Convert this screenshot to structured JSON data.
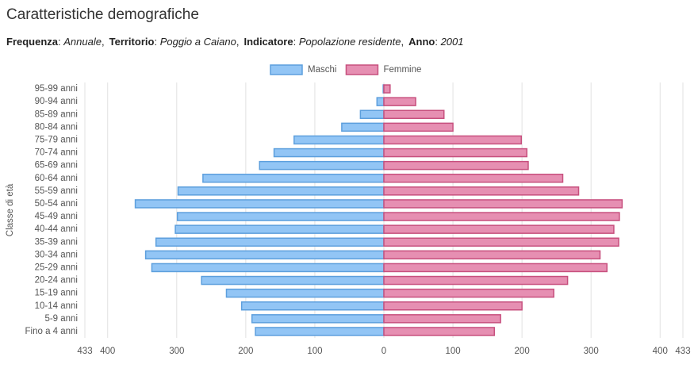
{
  "chart_data": {
    "type": "pyramid",
    "title": "Caratteristiche demografiche",
    "subtitle": [
      {
        "label": "Frequenza",
        "value": "Annuale"
      },
      {
        "label": "Territorio",
        "value": "Poggio a Caiano"
      },
      {
        "label": "Indicatore",
        "value": "Popolazione residente"
      },
      {
        "label": "Anno",
        "value": "2001"
      }
    ],
    "y_label": "Classe di età",
    "categories": [
      "95-99 anni",
      "90-94 anni",
      "85-89 anni",
      "80-84 anni",
      "75-79 anni",
      "70-74 anni",
      "65-69 anni",
      "60-64 anni",
      "55-59 anni",
      "50-54 anni",
      "45-49 anni",
      "40-44 anni",
      "35-39 anni",
      "30-34 anni",
      "25-29 anni",
      "20-24 anni",
      "15-19 anni",
      "10-14 anni",
      "5-9 anni",
      "Fino a 4 anni"
    ],
    "series": [
      {
        "name": "Maschi",
        "side": "left",
        "color": "#92c5f5",
        "stroke": "#5d9fdd",
        "values": [
          1,
          10,
          34,
          61,
          130,
          159,
          180,
          262,
          298,
          360,
          299,
          302,
          330,
          345,
          336,
          264,
          228,
          206,
          191,
          186
        ]
      },
      {
        "name": "Femmine",
        "side": "right",
        "color": "#e68fb2",
        "stroke": "#c7507e",
        "values": [
          9,
          46,
          87,
          100,
          199,
          207,
          209,
          259,
          282,
          345,
          341,
          333,
          340,
          313,
          323,
          266,
          246,
          200,
          169,
          160
        ]
      }
    ],
    "xlim": [
      -433,
      433
    ],
    "xticks": [
      {
        "value": -433,
        "label": "433"
      },
      {
        "value": -400,
        "label": "400"
      },
      {
        "value": -300,
        "label": "300"
      },
      {
        "value": -200,
        "label": "200"
      },
      {
        "value": -100,
        "label": "100"
      },
      0,
      100,
      200,
      300,
      400,
      433
    ],
    "grid": true
  }
}
